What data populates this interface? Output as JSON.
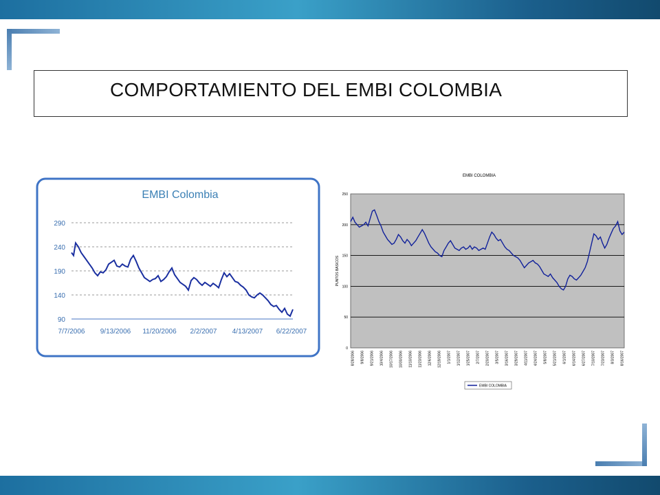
{
  "slide": {
    "title": "COMPORTAMIENTO DEL EMBI COLOMBIA",
    "accent_color": "#3a7fb4"
  },
  "chart_data": [
    {
      "type": "line",
      "title": "EMBI Colombia",
      "xlabel": "",
      "ylabel": "",
      "ylim": [
        90,
        290
      ],
      "yticks": [
        290,
        240,
        190,
        140,
        90
      ],
      "xtick_labels": [
        "7/7/2006",
        "9/13/2006",
        "11/20/2006",
        "2/2/2007",
        "4/13/2007",
        "6/22/2007"
      ],
      "grid": "dashed-horizontal",
      "line_color": "#1a2fa0",
      "title_color": "#3a7fb4",
      "x": [
        0,
        3,
        6,
        10,
        14,
        18,
        22,
        26,
        30,
        34,
        38,
        42,
        46,
        50,
        54,
        58,
        62,
        66,
        70,
        74,
        78,
        82,
        86,
        90,
        94,
        98,
        102,
        106,
        110,
        114,
        118,
        122,
        126,
        130,
        134,
        138,
        142,
        146,
        150,
        154,
        158,
        162,
        166,
        170,
        174,
        178,
        182,
        186,
        190,
        194,
        198,
        202,
        206,
        210,
        214,
        218,
        222,
        226,
        230,
        234,
        238,
        242,
        246,
        250,
        254,
        258,
        262,
        266,
        270,
        274,
        278,
        282,
        286,
        290,
        294,
        298,
        302,
        306,
        310,
        314,
        318,
        322
      ],
      "y": [
        228,
        222,
        248,
        240,
        228,
        220,
        212,
        204,
        196,
        186,
        180,
        188,
        186,
        192,
        204,
        208,
        212,
        200,
        198,
        204,
        200,
        198,
        214,
        222,
        210,
        196,
        186,
        176,
        172,
        168,
        172,
        174,
        180,
        168,
        172,
        178,
        188,
        196,
        182,
        174,
        166,
        162,
        158,
        150,
        170,
        176,
        172,
        165,
        160,
        166,
        162,
        158,
        164,
        160,
        155,
        172,
        186,
        178,
        184,
        176,
        168,
        166,
        160,
        156,
        150,
        140,
        136,
        134,
        140,
        144,
        140,
        134,
        128,
        120,
        116,
        118,
        110,
        104,
        112,
        100,
        96,
        110
      ]
    },
    {
      "type": "line",
      "title": "EMBI COLOMBIA",
      "ylabel": "PUNTOS BÁSICOS",
      "ylim": [
        0,
        250
      ],
      "yticks": [
        0,
        50,
        100,
        150,
        200,
        250
      ],
      "xtick_labels": [
        "8/28/2006",
        "9/8/2006",
        "9/21/2006",
        "10/4/2006",
        "10/17/2006",
        "10/30/2006",
        "11/10/2006",
        "11/23/2006",
        "12/6/2006",
        "12/19/2006",
        "1/1/2007",
        "1/12/2007",
        "1/25/2007",
        "2/7/2007",
        "2/20/2007",
        "3/5/2007",
        "3/16/2007",
        "3/29/2007",
        "4/11/2007",
        "4/24/2007",
        "5/8/2007",
        "5/21/2007",
        "6/1/2007",
        "6/14/2007",
        "6/27/2007",
        "7/10/2007",
        "7/23/2007",
        "8/3/2007",
        "8/16/2007"
      ],
      "legend": "EMBI COLOMBIA",
      "legend_placement": "bottom",
      "background_color": "#c0c0c0",
      "line_color": "#10209a",
      "y": [
        205,
        212,
        204,
        200,
        196,
        198,
        200,
        204,
        198,
        210,
        222,
        224,
        215,
        205,
        198,
        188,
        182,
        176,
        172,
        168,
        170,
        176,
        184,
        180,
        174,
        170,
        176,
        172,
        166,
        170,
        174,
        180,
        186,
        192,
        186,
        178,
        170,
        164,
        160,
        156,
        154,
        150,
        148,
        158,
        164,
        170,
        174,
        168,
        162,
        160,
        158,
        162,
        164,
        160,
        162,
        166,
        160,
        164,
        162,
        158,
        160,
        162,
        160,
        170,
        180,
        188,
        184,
        178,
        174,
        176,
        170,
        164,
        160,
        158,
        154,
        150,
        148,
        146,
        142,
        136,
        130,
        134,
        138,
        140,
        142,
        138,
        136,
        132,
        126,
        120,
        118,
        116,
        120,
        114,
        110,
        106,
        100,
        96,
        94,
        100,
        112,
        118,
        116,
        112,
        110,
        114,
        118,
        124,
        130,
        140,
        155,
        170,
        185,
        182,
        176,
        180,
        170,
        162,
        168,
        178,
        186,
        194,
        198,
        205,
        190,
        184,
        188
      ]
    }
  ]
}
